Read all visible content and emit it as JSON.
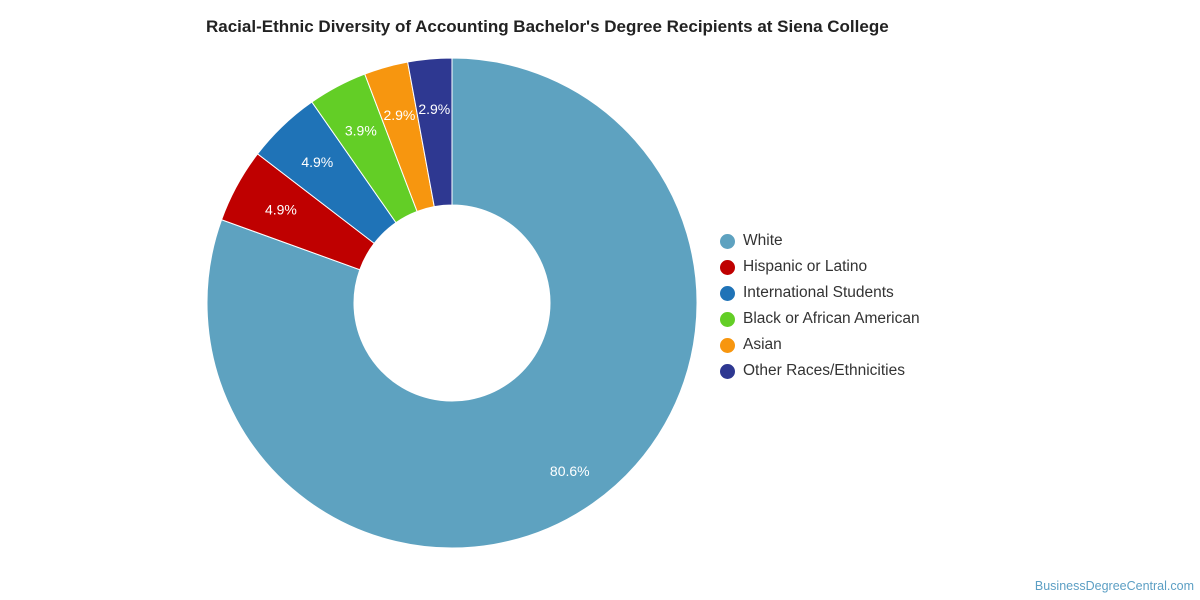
{
  "chart_data": {
    "type": "pie",
    "title": "Racial-Ethnic Diversity of Accounting Bachelor's Degree Recipients at Siena College",
    "categories": [
      "White",
      "Hispanic or Latino",
      "International Students",
      "Black or African American",
      "Asian",
      "Other Races/Ethnicities"
    ],
    "values": [
      80.6,
      4.9,
      4.9,
      3.9,
      2.9,
      2.9
    ],
    "labels": [
      "80.6%",
      "4.9%",
      "4.9%",
      "3.9%",
      "2.9%",
      "2.9%"
    ],
    "colors": [
      "#5ea2c0",
      "#bf0000",
      "#1f73b7",
      "#63ce26",
      "#f7960f",
      "#2e3891"
    ],
    "legend_position": "right",
    "donut": true
  },
  "watermark": "BusinessDegreeCentral.com"
}
